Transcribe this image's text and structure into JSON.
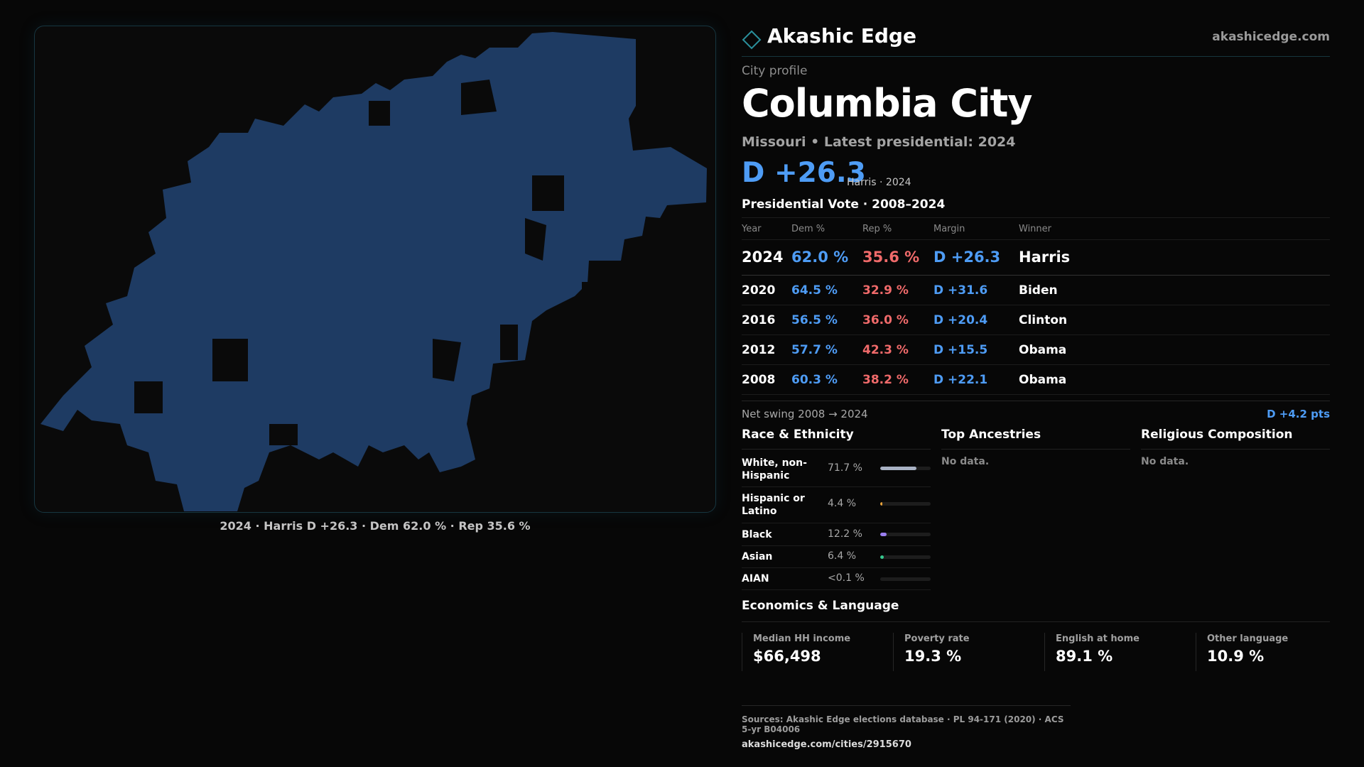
{
  "brand": {
    "name": "Akashic Edge",
    "url": "akashicedge.com"
  },
  "profile": {
    "eyebrow": "City profile",
    "city": "Columbia City",
    "subline": "Missouri • Latest presidential: 2024",
    "headline_margin": "D +26.3",
    "headline_note": "Harris · 2024"
  },
  "map": {
    "fill_color": "#1e3b63",
    "caption": "2024 · Harris D +26.3 · Dem 62.0 % · Rep 35.6 %"
  },
  "vote": {
    "title": "Presidential Vote · 2008–2024",
    "headers": {
      "year": "Year",
      "dem": "Dem %",
      "rep": "Rep %",
      "margin": "Margin",
      "winner": "Winner"
    },
    "rows": [
      {
        "year": "2024",
        "dem": "62.0 %",
        "rep": "35.6 %",
        "margin": "D +26.3",
        "winner": "Harris"
      },
      {
        "year": "2020",
        "dem": "64.5 %",
        "rep": "32.9 %",
        "margin": "D +31.6",
        "winner": "Biden"
      },
      {
        "year": "2016",
        "dem": "56.5 %",
        "rep": "36.0 %",
        "margin": "D +20.4",
        "winner": "Clinton"
      },
      {
        "year": "2012",
        "dem": "57.7 %",
        "rep": "42.3 %",
        "margin": "D +15.5",
        "winner": "Obama"
      },
      {
        "year": "2008",
        "dem": "60.3 %",
        "rep": "38.2 %",
        "margin": "D +22.1",
        "winner": "Obama"
      }
    ],
    "swing_label": "Net swing 2008 → 2024",
    "swing_value": "D +4.2 pts"
  },
  "race": {
    "title": "Race & Ethnicity",
    "rows": [
      {
        "label": "White, non-Hispanic",
        "pct": "71.7 %",
        "fill": 0.717,
        "color": "#a9b2c4"
      },
      {
        "label": "Hispanic or Latino",
        "pct": "4.4 %",
        "fill": 0.044,
        "color": "#e8a23a"
      },
      {
        "label": "Black",
        "pct": "12.2 %",
        "fill": 0.122,
        "color": "#9b7ff0"
      },
      {
        "label": "Asian",
        "pct": "6.4 %",
        "fill": 0.064,
        "color": "#36c98f"
      },
      {
        "label": "AIAN",
        "pct": "<0.1 %",
        "fill": 0.0,
        "color": "#6a6a6a"
      }
    ]
  },
  "ancestries": {
    "title": "Top Ancestries",
    "empty": "No data."
  },
  "religion": {
    "title": "Religious Composition",
    "empty": "No data."
  },
  "econ": {
    "title": "Economics & Language",
    "cells": [
      {
        "label": "Median HH income",
        "value": "$66,498"
      },
      {
        "label": "Poverty rate",
        "value": "19.3 %"
      },
      {
        "label": "English at home",
        "value": "89.1 %"
      },
      {
        "label": "Other language",
        "value": "10.9 %"
      }
    ]
  },
  "sources": {
    "line": "Sources: Akashic Edge elections database · PL 94-171 (2020) · ACS 5-yr B04006",
    "url": "akashicedge.com/cities/2915670"
  }
}
